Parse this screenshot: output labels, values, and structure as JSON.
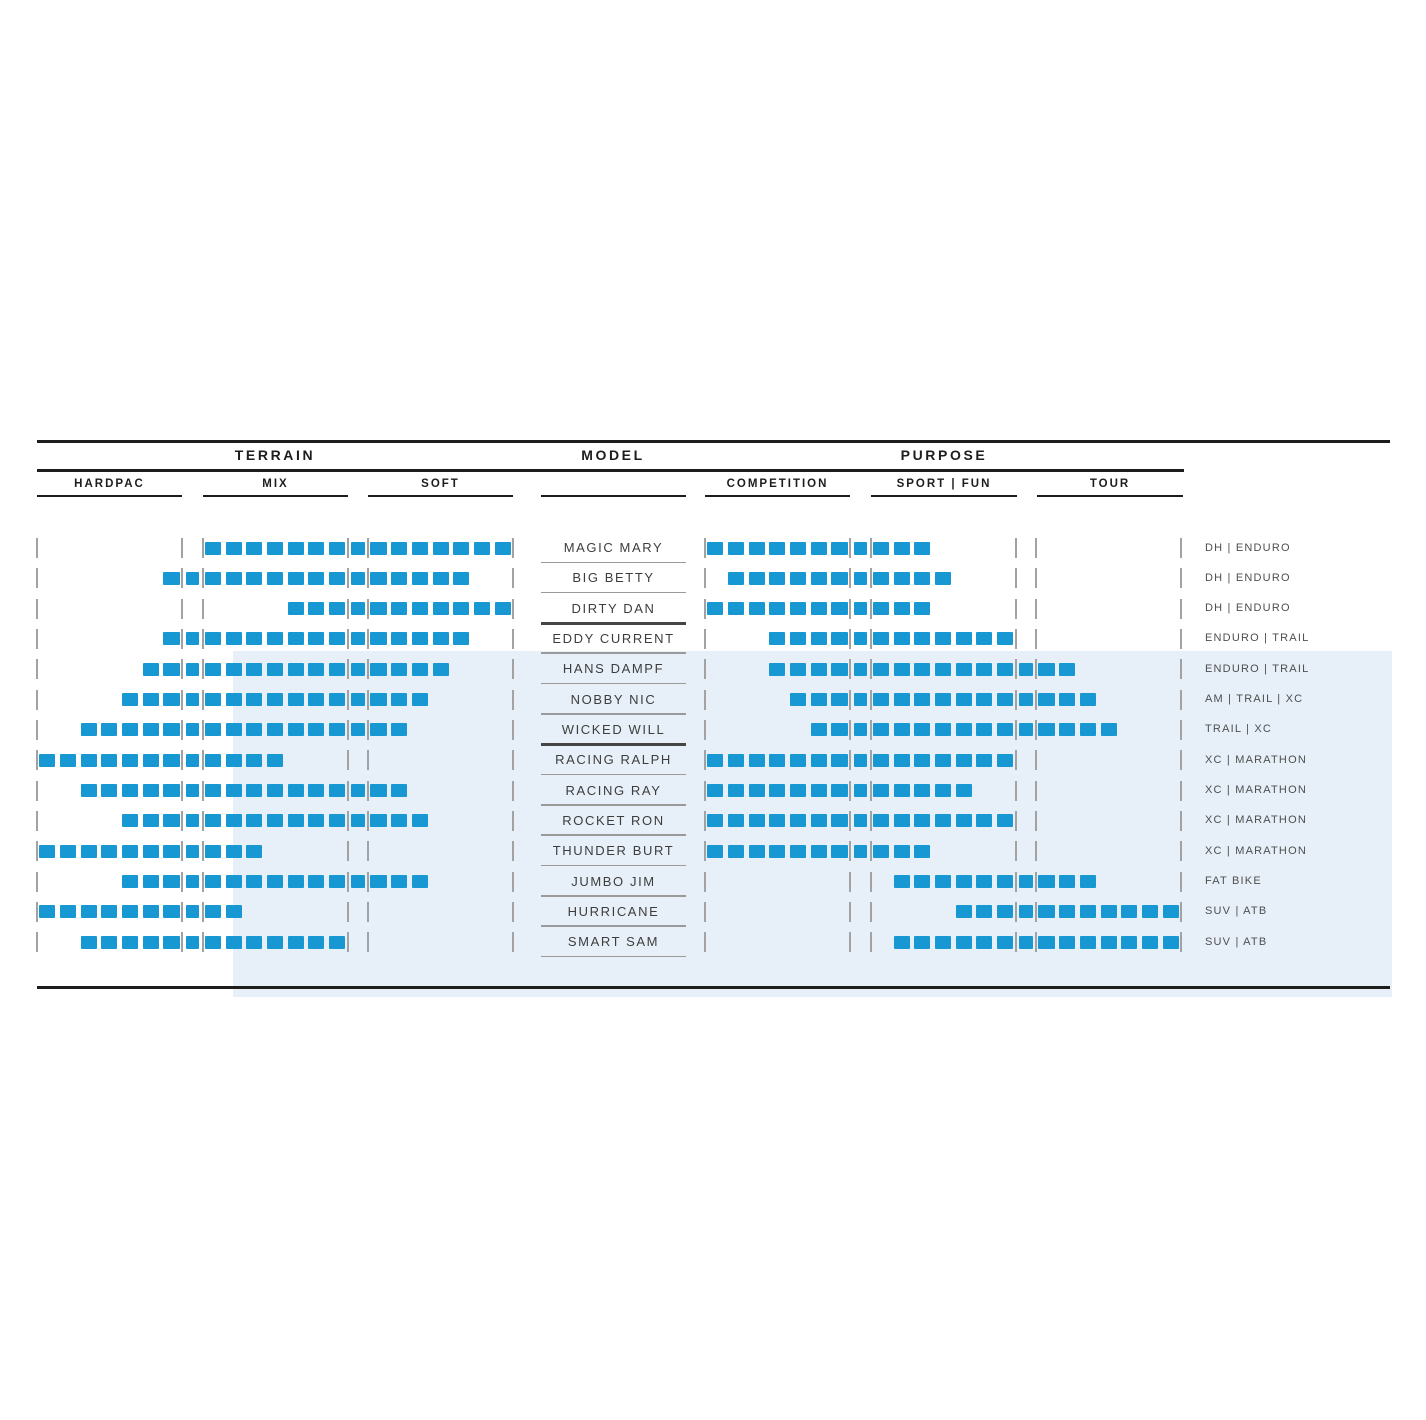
{
  "header": {
    "terrain": "TERRAIN",
    "model": "MODEL",
    "purpose": "PURPOSE"
  },
  "subheader": {
    "hardpac": "HARDPAC",
    "mix": "MIX",
    "soft": "SOFT",
    "competition": "COMPETITION",
    "sport_fun": "SPORT | FUN",
    "tour": "TOUR"
  },
  "colors": {
    "bar": "#1798d3",
    "highlight_bg": "#e7f0f8",
    "rule": "#1d1d1b",
    "tick": "#a2a2a2",
    "separator": "#9a9a9a",
    "separator_dark": "#454545"
  },
  "chart_data": {
    "type": "bar",
    "title": "",
    "xlabel": "",
    "ylabel": "",
    "scale_note": "Each axis is 23 unit squares: three columns of 7 units separated by 1-unit gap squares. Ranges are inclusive unit indices 0-22.",
    "terrain_columns": [
      "HARDPAC",
      "MIX",
      "SOFT"
    ],
    "purpose_columns": [
      "COMPETITION",
      "SPORT | FUN",
      "TOUR"
    ],
    "legend_position": "none",
    "grid": false,
    "rows": [
      {
        "model": "MAGIC MARY",
        "terrain_range": [
          8,
          22
        ],
        "purpose_range": [
          0,
          10
        ],
        "use": "DH | ENDURO"
      },
      {
        "model": "BIG BETTY",
        "terrain_range": [
          6,
          20
        ],
        "purpose_range": [
          1,
          11
        ],
        "use": "DH | ENDURO"
      },
      {
        "model": "DIRTY DAN",
        "terrain_range": [
          12,
          22
        ],
        "purpose_range": [
          0,
          10
        ],
        "use": "DH | ENDURO"
      },
      {
        "model": "EDDY CURRENT",
        "terrain_range": [
          6,
          20
        ],
        "purpose_range": [
          3,
          14
        ],
        "use": "ENDURO | TRAIL"
      },
      {
        "model": "HANS DAMPF",
        "terrain_range": [
          5,
          19
        ],
        "purpose_range": [
          3,
          17
        ],
        "use": "ENDURO | TRAIL"
      },
      {
        "model": "NOBBY NIC",
        "terrain_range": [
          4,
          18
        ],
        "purpose_range": [
          4,
          18
        ],
        "use": "AM | TRAIL | XC"
      },
      {
        "model": "WICKED WILL",
        "terrain_range": [
          2,
          17
        ],
        "purpose_range": [
          5,
          19
        ],
        "use": "TRAIL | XC"
      },
      {
        "model": "RACING RALPH",
        "terrain_range": [
          0,
          11
        ],
        "purpose_range": [
          0,
          14
        ],
        "use": "XC | MARATHON"
      },
      {
        "model": "RACING RAY",
        "terrain_range": [
          2,
          17
        ],
        "purpose_range": [
          0,
          12
        ],
        "use": "XC | MARATHON"
      },
      {
        "model": "ROCKET RON",
        "terrain_range": [
          4,
          18
        ],
        "purpose_range": [
          0,
          14
        ],
        "use": "XC | MARATHON"
      },
      {
        "model": "THUNDER BURT",
        "terrain_range": [
          0,
          10
        ],
        "purpose_range": [
          0,
          10
        ],
        "use": "XC | MARATHON"
      },
      {
        "model": "JUMBO JIM",
        "terrain_range": [
          4,
          18
        ],
        "purpose_range": [
          9,
          18
        ],
        "use": "FAT BIKE"
      },
      {
        "model": "HURRICANE",
        "terrain_range": [
          0,
          9
        ],
        "purpose_range": [
          12,
          22
        ],
        "use": "SUV | ATB"
      },
      {
        "model": "SMART SAM",
        "terrain_range": [
          2,
          14
        ],
        "purpose_range": [
          9,
          22
        ],
        "use": "SUV | ATB"
      }
    ],
    "group_separators_after": [
      "DIRTY DAN",
      "WICKED WILL"
    ]
  }
}
